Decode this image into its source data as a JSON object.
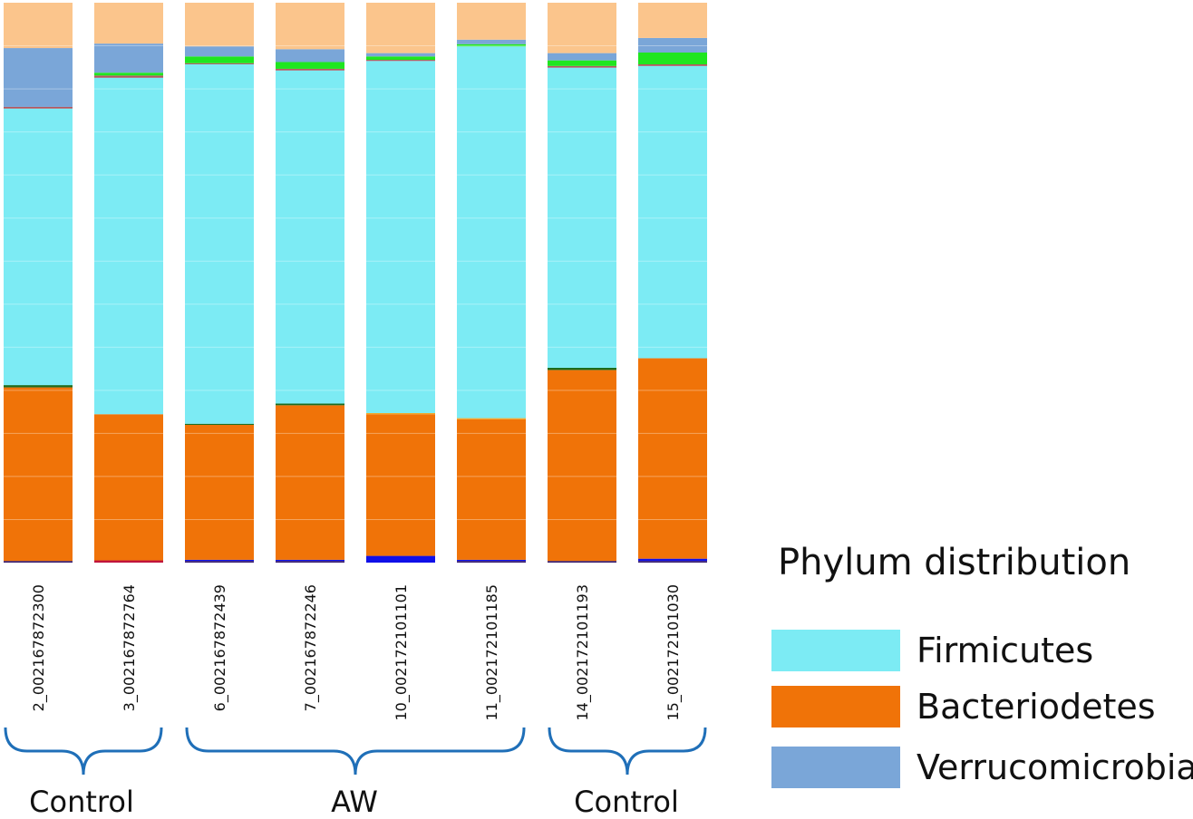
{
  "chart_data": {
    "type": "bar",
    "stacked": true,
    "normalized": true,
    "ylim": [
      0,
      1
    ],
    "categories": [
      "2_002167872300",
      "3_002167872764",
      "6_002167872439",
      "7_002167872246",
      "10_002172101101",
      "11_002172101185",
      "14_002172101193",
      "15_002172101030"
    ],
    "series": [
      {
        "name": "",
        "color": "#3a1f6e",
        "values": [
          0.003,
          0.0,
          0.003,
          0.003,
          0.0,
          0.003,
          0.003,
          0.003
        ]
      },
      {
        "name": "",
        "color": "#c0143c",
        "values": [
          0.0,
          0.004,
          0.0,
          0.0,
          0.0,
          0.0,
          0.0,
          0.0
        ]
      },
      {
        "name": "",
        "color": "#1010e8",
        "values": [
          0.0,
          0.0,
          0.002,
          0.002,
          0.012,
          0.002,
          0.0,
          0.004
        ]
      },
      {
        "name": "Bacteriodetes",
        "color": "#f07308",
        "values": [
          0.31,
          0.261,
          0.241,
          0.276,
          0.253,
          0.251,
          0.341,
          0.358
        ]
      },
      {
        "name": "",
        "color": "#1d6b1d",
        "values": [
          0.004,
          0.0,
          0.002,
          0.003,
          0.0,
          0.0,
          0.004,
          0.0
        ]
      },
      {
        "name": "",
        "color": "#f5a623",
        "values": [
          0.0,
          0.0,
          0.0,
          0.0,
          0.002,
          0.002,
          0.0,
          0.0
        ]
      },
      {
        "name": "Firmicutes",
        "color": "#7cebf4",
        "values": [
          0.494,
          0.601,
          0.642,
          0.595,
          0.629,
          0.664,
          0.536,
          0.522
        ]
      },
      {
        "name": "",
        "color": "#b05a62",
        "values": [
          0.003,
          0.004,
          0.002,
          0.003,
          0.002,
          0.0,
          0.003,
          0.003
        ]
      },
      {
        "name": "",
        "color": "#1fe61f",
        "values": [
          0.0,
          0.005,
          0.012,
          0.012,
          0.006,
          0.004,
          0.01,
          0.021
        ]
      },
      {
        "name": "Verrucomicrobia",
        "color": "#7aa6d8",
        "values": [
          0.105,
          0.052,
          0.018,
          0.023,
          0.006,
          0.008,
          0.013,
          0.026
        ]
      },
      {
        "name": "",
        "color": "#fbc58c",
        "values": [
          0.081,
          0.073,
          0.078,
          0.083,
          0.09,
          0.066,
          0.09,
          0.063
        ]
      }
    ],
    "legend": {
      "title": "Phylum distribution",
      "placement": "right",
      "entries": [
        {
          "label": "Firmicutes",
          "color": "#7cebf4"
        },
        {
          "label": "Bacteriodetes",
          "color": "#f07308"
        },
        {
          "label": "Verrucomicrobia",
          "color": "#7aa6d8"
        }
      ]
    },
    "groups": [
      {
        "label": "Control",
        "from": 0,
        "to": 1
      },
      {
        "label": "AW",
        "from": 2,
        "to": 5
      },
      {
        "label": "Control",
        "from": 6,
        "to": 7
      }
    ],
    "grid": false,
    "brace_color": "#1f6fb8"
  }
}
